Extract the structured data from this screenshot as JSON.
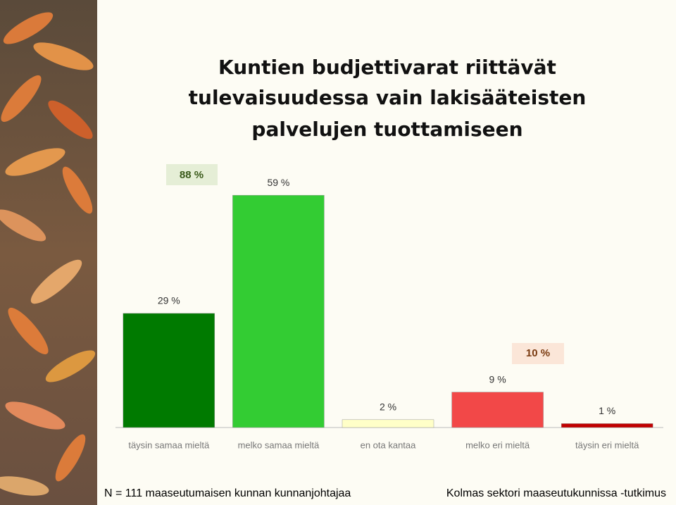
{
  "chart_data": {
    "type": "bar",
    "title": [
      "Kuntien budjettivarat riittävät",
      "tulevaisuudessa vain lakisääteisten",
      "palvelujen tuottamiseen"
    ],
    "categories": [
      "täysin samaa mieltä",
      "melko samaa mieltä",
      "en ota kantaa",
      "melko eri mieltä",
      "täysin eri mieltä"
    ],
    "values": [
      29,
      59,
      2,
      9,
      1
    ],
    "value_labels": [
      "29 %",
      "59 %",
      "2 %",
      "9 %",
      "1 %"
    ],
    "colors": [
      "#007a00",
      "#33cc33",
      "#ffffc8",
      "#f24848",
      "#c00000"
    ],
    "annotations": [
      "88 %",
      "10 %"
    ]
  },
  "footer": {
    "left": "N = 111 maaseutumaisen kunnan kunnanjohtajaa",
    "right": "Kolmas sektori maaseutukunnissa -tutkimus"
  }
}
